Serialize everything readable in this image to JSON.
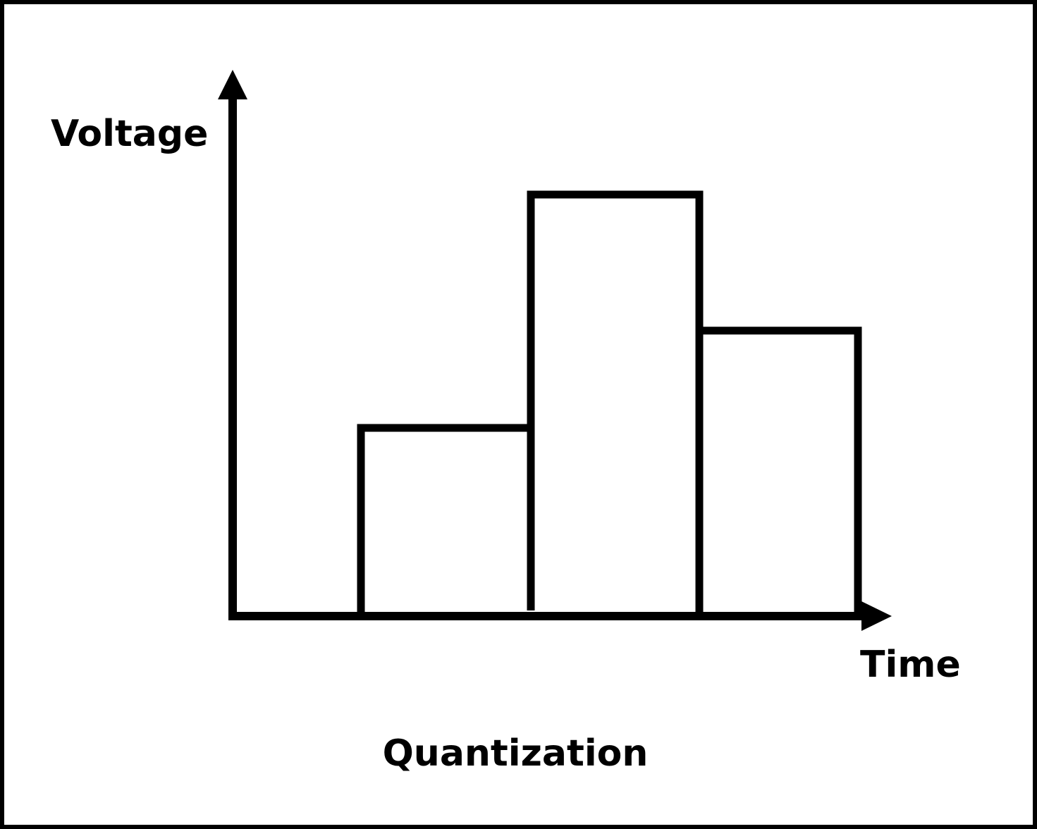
{
  "y_axis_label": "Voltage",
  "x_axis_label": "Time",
  "caption": "Quantization"
}
